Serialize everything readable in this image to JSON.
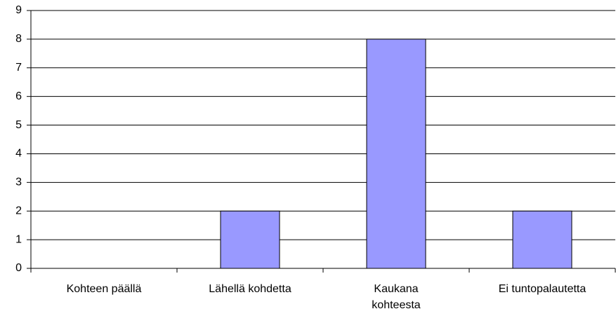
{
  "chart_data": {
    "type": "bar",
    "categories": [
      "Kohteen päällä",
      "Lähellä kohdetta",
      "Kaukana kohteesta",
      "Ei tuntopalautetta"
    ],
    "values": [
      0,
      2,
      8,
      2
    ],
    "color": "#9999ff",
    "ylim": [
      0,
      9
    ],
    "yticks": [
      0,
      1,
      2,
      3,
      4,
      5,
      6,
      7,
      8,
      9
    ],
    "grid": true
  }
}
